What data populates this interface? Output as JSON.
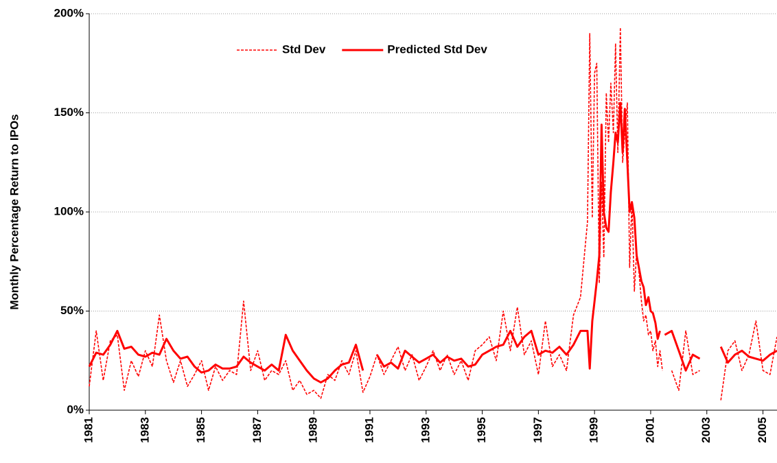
{
  "chart_data": {
    "type": "line",
    "y_label": "Monthly Percentage Return to IPOs",
    "x": [
      1981,
      1981.25,
      1981.5,
      1981.75,
      1982,
      1982.25,
      1982.5,
      1982.75,
      1983,
      1983.25,
      1983.5,
      1983.75,
      1984,
      1984.25,
      1984.5,
      1984.75,
      1985,
      1985.25,
      1985.5,
      1985.75,
      1986,
      1986.25,
      1986.5,
      1986.75,
      1987,
      1987.25,
      1987.5,
      1987.75,
      1988,
      1988.25,
      1988.5,
      1988.75,
      1989,
      1989.25,
      1989.5,
      1989.75,
      1990,
      1990.25,
      1990.5,
      1990.75,
      1991,
      1991.25,
      1991.5,
      1991.75,
      1992,
      1992.25,
      1992.5,
      1992.75,
      1993,
      1993.25,
      1993.5,
      1993.75,
      1994,
      1994.25,
      1994.5,
      1994.75,
      1995,
      1995.25,
      1995.5,
      1995.75,
      1996,
      1996.25,
      1996.5,
      1996.75,
      1997,
      1997.25,
      1997.5,
      1997.75,
      1998,
      1998.25,
      1998.5,
      1998.75,
      1998.83,
      1998.92,
      1999,
      1999.08,
      1999.17,
      1999.25,
      1999.33,
      1999.42,
      1999.5,
      1999.58,
      1999.67,
      1999.75,
      1999.83,
      1999.92,
      2000,
      2000.08,
      2000.17,
      2000.25,
      2000.33,
      2000.42,
      2000.5,
      2000.58,
      2000.67,
      2000.75,
      2000.83,
      2000.92,
      2001,
      2001.08,
      2001.17,
      2001.25,
      2001.33,
      2001.42,
      2001.5,
      2001.75,
      2002,
      2002.25,
      2002.5,
      2002.75,
      2003,
      2003.25,
      2003.5,
      2003.75,
      2004,
      2004.25,
      2004.5,
      2004.75,
      2005,
      2005.25,
      2005.5
    ],
    "series": [
      {
        "name": "Std Dev",
        "color": "#ff0000",
        "dashed": true,
        "values": [
          12,
          40,
          15,
          35,
          38,
          10,
          25,
          17,
          30,
          22,
          48,
          25,
          14,
          25,
          12,
          18,
          25,
          10,
          22,
          15,
          20,
          18,
          55,
          20,
          30,
          15,
          20,
          18,
          25,
          10,
          15,
          8,
          10,
          6,
          18,
          15,
          25,
          18,
          30,
          9,
          17,
          28,
          18,
          25,
          32,
          20,
          28,
          15,
          22,
          30,
          20,
          28,
          18,
          25,
          15,
          30,
          33,
          37,
          25,
          50,
          30,
          52,
          28,
          35,
          18,
          45,
          22,
          28,
          20,
          48,
          57,
          95,
          190,
          97,
          170,
          175,
          64,
          115,
          77,
          160,
          135,
          165,
          140,
          185,
          130,
          193,
          125,
          140,
          155,
          72,
          105,
          60,
          80,
          70,
          55,
          45,
          48,
          38,
          40,
          30,
          35,
          22,
          30,
          20,
          null,
          20,
          10,
          40,
          18,
          20,
          null,
          null,
          5,
          30,
          35,
          20,
          28,
          45,
          20,
          18,
          37
        ]
      },
      {
        "name": "Predicted Std Dev",
        "color": "#ff0000",
        "dashed": false,
        "values": [
          22,
          29,
          28,
          33,
          40,
          31,
          32,
          28,
          27,
          29,
          28,
          36,
          30,
          26,
          27,
          22,
          19,
          20,
          23,
          21,
          21,
          22,
          27,
          24,
          22,
          20,
          23,
          20,
          38,
          30,
          25,
          20,
          16,
          14,
          16,
          20,
          23,
          24,
          33,
          20,
          null,
          28,
          22,
          24,
          21,
          30,
          27,
          24,
          26,
          28,
          24,
          27,
          25,
          26,
          22,
          23,
          28,
          30,
          32,
          33,
          40,
          32,
          37,
          40,
          28,
          30,
          29,
          32,
          28,
          33,
          40,
          40,
          21,
          45,
          55,
          65,
          78,
          144,
          100,
          92,
          90,
          110,
          125,
          140,
          135,
          155,
          130,
          152,
          125,
          100,
          105,
          97,
          78,
          72,
          65,
          62,
          53,
          57,
          50,
          49,
          44,
          36,
          40,
          null,
          38,
          40,
          30,
          20,
          28,
          26,
          null,
          null,
          32,
          24,
          28,
          30,
          27,
          26,
          25,
          28,
          30
        ]
      }
    ],
    "xlim": [
      1981,
      2005.5
    ],
    "xticks": [
      1981,
      1983,
      1985,
      1987,
      1989,
      1991,
      1993,
      1995,
      1997,
      1999,
      2001,
      2003,
      2005
    ],
    "ylim": [
      0,
      200
    ],
    "yticks": [
      {
        "value": 0,
        "label": "0%"
      },
      {
        "value": 50,
        "label": "50%"
      },
      {
        "value": 100,
        "label": "100%"
      },
      {
        "value": 150,
        "label": "150%"
      },
      {
        "value": 200,
        "label": "200%"
      }
    ],
    "grid": true,
    "legend": "top-center"
  }
}
